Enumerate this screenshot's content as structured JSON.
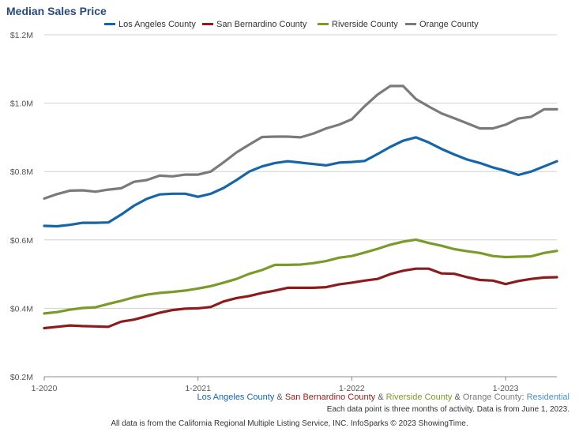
{
  "colors": {
    "la": "#1565a8",
    "sb": "#8b1c1c",
    "riverside": "#7a9a2a",
    "orange": "#7a7a7a",
    "residential": "#4a90c8",
    "title": "#2a4a7a",
    "grid": "#d0d0d0",
    "sep": "#555555"
  },
  "chart_data": {
    "type": "line",
    "title": "Median Sales Price",
    "x": [
      "2020-01",
      "2020-02",
      "2020-03",
      "2020-04",
      "2020-05",
      "2020-06",
      "2020-07",
      "2020-08",
      "2020-09",
      "2020-10",
      "2020-11",
      "2020-12",
      "2021-01",
      "2021-02",
      "2021-03",
      "2021-04",
      "2021-05",
      "2021-06",
      "2021-07",
      "2021-08",
      "2021-09",
      "2021-10",
      "2021-11",
      "2021-12",
      "2022-01",
      "2022-02",
      "2022-03",
      "2022-04",
      "2022-05",
      "2022-06",
      "2022-07",
      "2022-08",
      "2022-09",
      "2022-10",
      "2022-11",
      "2022-12",
      "2023-01",
      "2023-02",
      "2023-03",
      "2023-04",
      "2023-05"
    ],
    "x_tick_labels": [
      "1-2020",
      "1-2021",
      "1-2022",
      "1-2023"
    ],
    "x_tick_values": [
      "2020-01",
      "2021-01",
      "2022-01",
      "2023-01"
    ],
    "y_tick_labels": [
      "$0.2M",
      "$0.4M",
      "$0.6M",
      "$0.8M",
      "$1.0M",
      "$1.2M"
    ],
    "ylim": [
      200000,
      1200000
    ],
    "legend_placement": "top-center",
    "grid": true,
    "series": [
      {
        "name": "Los Angeles County",
        "color_key": "la",
        "values": [
          641000,
          640000,
          644000,
          650000,
          650000,
          651000,
          674000,
          700000,
          720000,
          733000,
          735000,
          735000,
          726000,
          735000,
          752000,
          775000,
          800000,
          815000,
          825000,
          830000,
          826000,
          822000,
          818000,
          826000,
          828000,
          831000,
          851000,
          872000,
          890000,
          900000,
          885000,
          866000,
          850000,
          835000,
          825000,
          812000,
          802000,
          790000,
          800000,
          815000,
          830000
        ]
      },
      {
        "name": "San Bernardino County",
        "color_key": "sb",
        "values": [
          342000,
          346000,
          350000,
          348000,
          347000,
          346000,
          361000,
          367000,
          377000,
          387000,
          395000,
          399000,
          400000,
          404000,
          420000,
          430000,
          436000,
          445000,
          452000,
          460000,
          460000,
          460000,
          462000,
          470000,
          475000,
          481000,
          486000,
          500000,
          510000,
          516000,
          516000,
          502000,
          501000,
          491000,
          483000,
          481000,
          471000,
          480000,
          486000,
          490000,
          491000
        ]
      },
      {
        "name": "Riverside County",
        "color_key": "riverside",
        "values": [
          385000,
          389000,
          396000,
          401000,
          403000,
          413000,
          422000,
          432000,
          440000,
          445000,
          448000,
          452000,
          458000,
          465000,
          475000,
          486000,
          501000,
          512000,
          527000,
          527000,
          528000,
          532000,
          538000,
          548000,
          553000,
          563000,
          574000,
          586000,
          595000,
          601000,
          591000,
          583000,
          573000,
          567000,
          562000,
          553000,
          550000,
          551000,
          552000,
          562000,
          568000
        ]
      },
      {
        "name": "Orange County",
        "color_key": "orange",
        "values": [
          721000,
          734000,
          744000,
          745000,
          741000,
          747000,
          751000,
          770000,
          775000,
          788000,
          786000,
          791000,
          791000,
          800000,
          827000,
          856000,
          879000,
          901000,
          902000,
          902000,
          900000,
          911000,
          926000,
          937000,
          953000,
          991000,
          1025000,
          1050000,
          1050000,
          1012000,
          990000,
          970000,
          956000,
          941000,
          926000,
          926000,
          937000,
          955000,
          960000,
          982000,
          982000
        ]
      }
    ]
  },
  "subtitle": {
    "la": "Los Angeles County",
    "amp1": " & ",
    "sb": "San Bernardino County",
    "amp2": " & ",
    "riverside": "Riverside County",
    "amp3": " & ",
    "orange": "Orange County",
    "colon": ": ",
    "residential": "Residential"
  },
  "note": "Each data point is three months of activity. Data is from June 1, 2023.",
  "footer": "All data is from the California Regional Multiple Listing Service, INC. InfoSparks © 2023 ShowingTime."
}
